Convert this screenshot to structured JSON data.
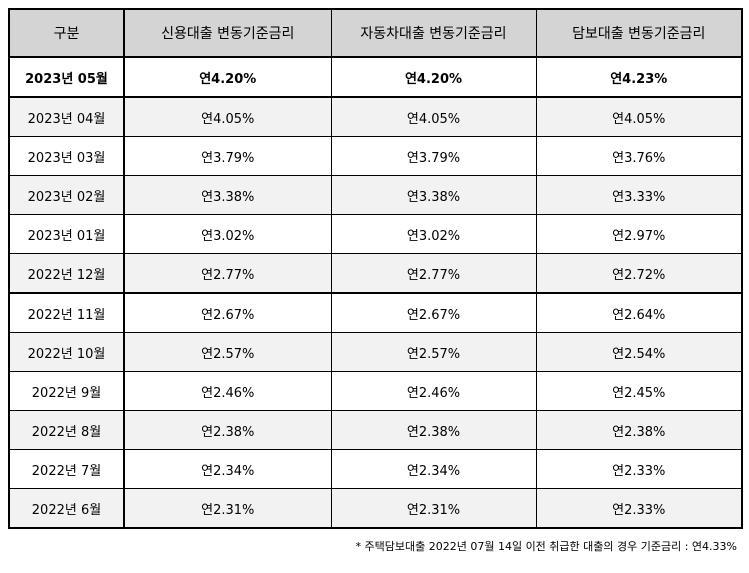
{
  "table": {
    "headers": [
      "구분",
      "신용대출 변동기준금리",
      "자동차대출 변동기준금리",
      "담보대출 변동기준금리"
    ],
    "rows": [
      {
        "period": "2023년 05월",
        "credit": "연4.20%",
        "auto": "연4.20%",
        "mortgage": "연4.23%"
      },
      {
        "period": "2023년 04월",
        "credit": "연4.05%",
        "auto": "연4.05%",
        "mortgage": "연4.05%"
      },
      {
        "period": "2023년 03월",
        "credit": "연3.79%",
        "auto": "연3.79%",
        "mortgage": "연3.76%"
      },
      {
        "period": "2023년 02월",
        "credit": "연3.38%",
        "auto": "연3.38%",
        "mortgage": "연3.33%"
      },
      {
        "period": "2023년 01월",
        "credit": "연3.02%",
        "auto": "연3.02%",
        "mortgage": "연2.97%"
      },
      {
        "period": "2022년 12월",
        "credit": "연2.77%",
        "auto": "연2.77%",
        "mortgage": "연2.72%"
      },
      {
        "period": "2022년 11월",
        "credit": "연2.67%",
        "auto": "연2.67%",
        "mortgage": "연2.64%"
      },
      {
        "period": "2022년 10월",
        "credit": "연2.57%",
        "auto": "연2.57%",
        "mortgage": "연2.54%"
      },
      {
        "period": "2022년 9월",
        "credit": "연2.46%",
        "auto": "연2.46%",
        "mortgage": "연2.45%"
      },
      {
        "period": "2022년 8월",
        "credit": "연2.38%",
        "auto": "연2.38%",
        "mortgage": "연2.38%"
      },
      {
        "period": "2022년 7월",
        "credit": "연2.34%",
        "auto": "연2.34%",
        "mortgage": "연2.33%"
      },
      {
        "period": "2022년 6월",
        "credit": "연2.31%",
        "auto": "연2.31%",
        "mortgage": "연2.33%"
      }
    ]
  },
  "footnote": "* 주택담보대출 2022년 07월 14일 이전 취급한 대출의 경우 기준금리 : 연4.33%"
}
